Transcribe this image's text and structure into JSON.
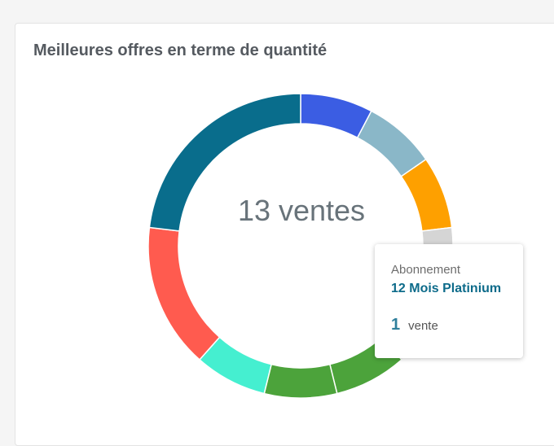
{
  "card": {
    "title": "Meilleures offres en terme de quantité"
  },
  "chart_data": {
    "type": "pie",
    "donut": true,
    "center_text": "13 ventes",
    "total": 13,
    "segments": [
      {
        "value": 1,
        "color": "#3b5de3"
      },
      {
        "value": 1,
        "color": "#8ab7c8"
      },
      {
        "value": 1,
        "color": "#fea000"
      },
      {
        "value": 1,
        "color": "#d5d5d5"
      },
      {
        "value": 1,
        "color": "#e7f3e7"
      },
      {
        "value": 1,
        "color": "#4ca33b"
      },
      {
        "value": 1,
        "color": "#4ca33b"
      },
      {
        "value": 1,
        "color": "#45efd0"
      },
      {
        "value": 2,
        "color": "#ff5b4f"
      },
      {
        "value": 3,
        "color": "#096d8c"
      }
    ]
  },
  "tooltip": {
    "label": "Abonnement",
    "name": "12 Mois Platinium",
    "count": "1",
    "unit": "vente"
  }
}
